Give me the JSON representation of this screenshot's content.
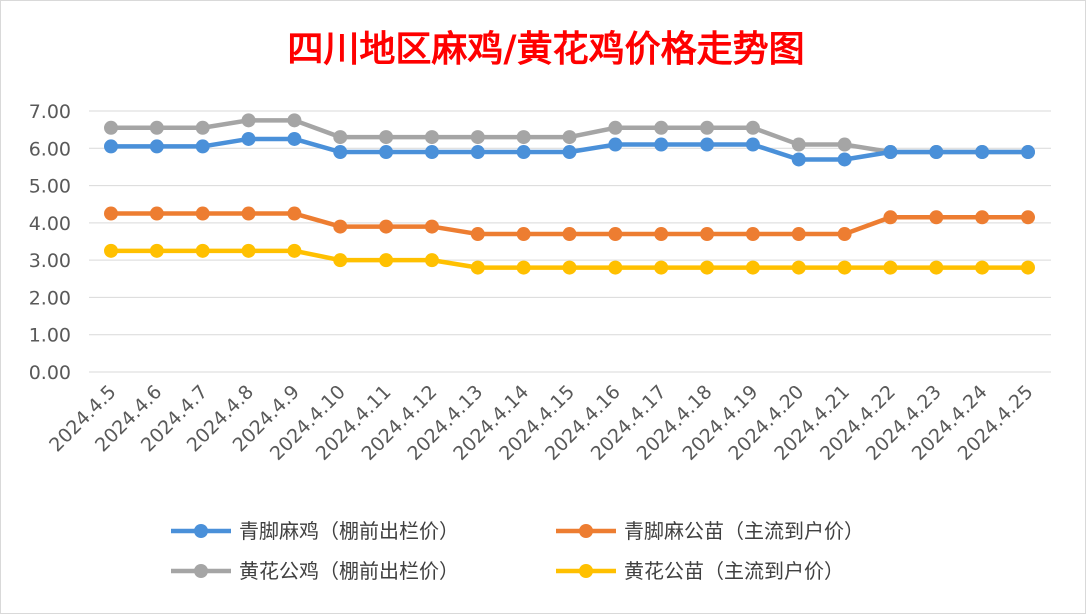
{
  "chart_data": {
    "type": "line",
    "title": "四川地区麻鸡/黄花鸡价格走势图",
    "xlabel": "",
    "ylabel": "",
    "ylim": [
      0,
      7
    ],
    "y_ticks": [
      "0.00",
      "1.00",
      "2.00",
      "3.00",
      "4.00",
      "5.00",
      "6.00",
      "7.00"
    ],
    "categories": [
      "2024.4.5",
      "2024.4.6",
      "2024.4.7",
      "2024.4.8",
      "2024.4.9",
      "2024.4.10",
      "2024.4.11",
      "2024.4.12",
      "2024.4.13",
      "2024.4.14",
      "2024.4.15",
      "2024.4.16",
      "2024.4.17",
      "2024.4.18",
      "2024.4.19",
      "2024.4.20",
      "2024.4.21",
      "2024.4.22",
      "2024.4.23",
      "2024.4.24",
      "2024.4.25"
    ],
    "grid": true,
    "legend_position": "bottom",
    "series": [
      {
        "name": "青脚麻鸡（棚前出栏价）",
        "color": "#4a90d9",
        "values": [
          6.05,
          6.05,
          6.05,
          6.25,
          6.25,
          5.9,
          5.9,
          5.9,
          5.9,
          5.9,
          5.9,
          6.1,
          6.1,
          6.1,
          6.1,
          5.7,
          5.7,
          5.9,
          5.9,
          5.9,
          5.9
        ]
      },
      {
        "name": "青脚麻公苗（主流到户价）",
        "color": "#ed7d31",
        "values": [
          4.25,
          4.25,
          4.25,
          4.25,
          4.25,
          3.9,
          3.9,
          3.9,
          3.7,
          3.7,
          3.7,
          3.7,
          3.7,
          3.7,
          3.7,
          3.7,
          3.7,
          4.15,
          4.15,
          4.15,
          4.15
        ]
      },
      {
        "name": "黄花公鸡（棚前出栏价）",
        "color": "#a5a5a5",
        "values": [
          6.55,
          6.55,
          6.55,
          6.75,
          6.75,
          6.3,
          6.3,
          6.3,
          6.3,
          6.3,
          6.3,
          6.55,
          6.55,
          6.55,
          6.55,
          6.1,
          6.1,
          5.9,
          5.9,
          5.9,
          5.9
        ]
      },
      {
        "name": "黄花公苗（主流到户价）",
        "color": "#ffc000",
        "values": [
          3.25,
          3.25,
          3.25,
          3.25,
          3.25,
          3.0,
          3.0,
          3.0,
          2.8,
          2.8,
          2.8,
          2.8,
          2.8,
          2.8,
          2.8,
          2.8,
          2.8,
          2.8,
          2.8,
          2.8,
          2.8
        ]
      }
    ]
  }
}
